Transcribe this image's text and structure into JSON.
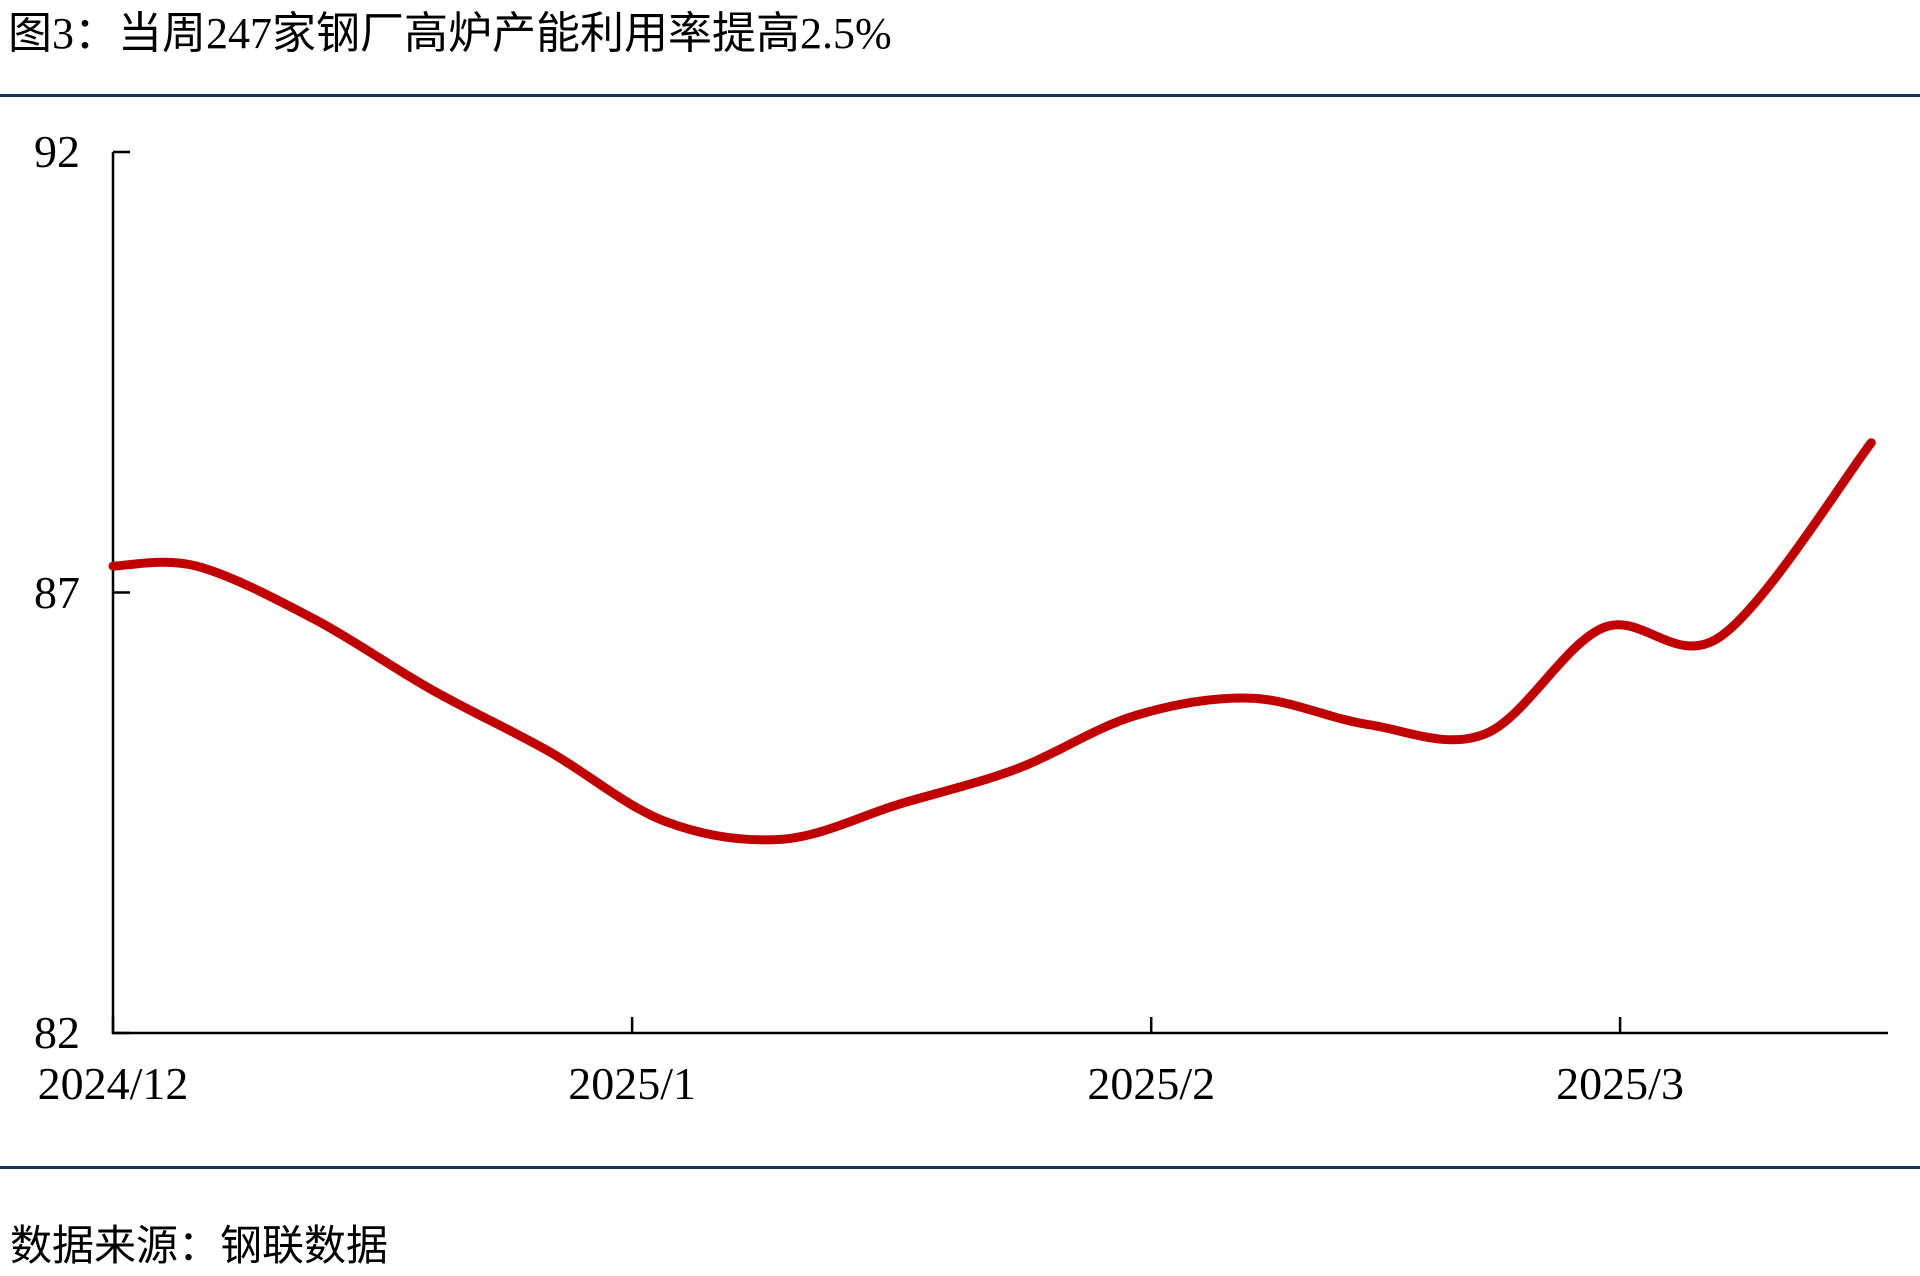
{
  "header": {
    "title": "图3：当周247家钢厂高炉产能利用率提高2.5%"
  },
  "footer": {
    "source": "数据来源：钢联数据"
  },
  "colors": {
    "divider": "#17375E",
    "axis": "#000000",
    "line": "#C00000",
    "background": "#FFFFFF"
  },
  "chart_data": {
    "type": "line",
    "title": "当周247家钢厂高炉产能利用率提高2.5%",
    "xlabel": "",
    "ylabel": "",
    "grid": false,
    "legend": "none",
    "smooth": true,
    "line_color": "#C00000",
    "line_width": 9,
    "ylim": [
      82,
      92
    ],
    "y_tick_labels": [
      "92",
      "87",
      "82"
    ],
    "y_tick_values": [
      92,
      87,
      82
    ],
    "x_range_days": [
      0,
      106
    ],
    "x_tick_labels": [
      "2024/12",
      "2025/1",
      "2025/2",
      "2025/3"
    ],
    "x_tick_day_offsets": [
      0,
      31,
      62,
      90
    ],
    "series": [
      {
        "name": "247家钢厂高炉产能利用率(%)",
        "dates": [
          "2024/12/1",
          "2024/12/6",
          "2024/12/13",
          "2024/12/20",
          "2024/12/27",
          "2025/1/3",
          "2025/1/10",
          "2025/1/17",
          "2025/1/24",
          "2025/1/31",
          "2025/2/7",
          "2025/2/14",
          "2025/2/21",
          "2025/2/28",
          "2025/3/7",
          "2025/3/14"
        ],
        "day_offsets": [
          0,
          5,
          12,
          19,
          26,
          33,
          40,
          47,
          54,
          61,
          68,
          75,
          82,
          89,
          96,
          105
        ],
        "values": [
          87.3,
          87.3,
          86.7,
          85.9,
          85.2,
          84.4,
          84.2,
          84.6,
          85.0,
          85.6,
          85.8,
          85.5,
          85.4,
          86.6,
          86.5,
          88.7
        ]
      }
    ]
  }
}
